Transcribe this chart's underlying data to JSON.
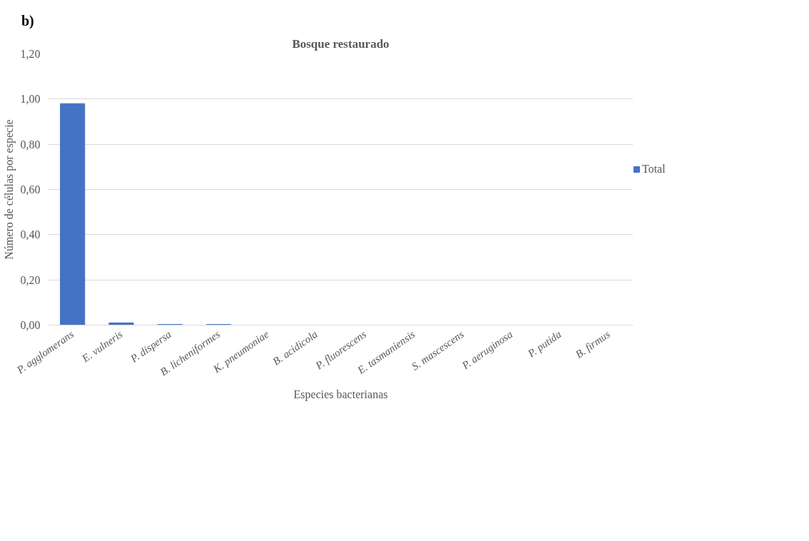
{
  "chart_data": {
    "type": "bar",
    "title": "Bosque restaurado",
    "xlabel": "Especies bacterianas",
    "ylabel": "Número de células por especie",
    "annotations": [
      "b)"
    ],
    "categories": [
      "P. agglomerans",
      "E. vulneris",
      "P. dispersa",
      "B. licheniformes",
      "K. pneumoniae",
      "B. acidicola",
      "P. fluorescens",
      "E. tasmaniensis",
      "S. mascescens",
      "P. aeruginosa",
      "P. putida",
      "B. firmus"
    ],
    "series": [
      {
        "name": "Total",
        "color": "#4472c4",
        "values": [
          0.98,
          0.01,
          0.003,
          0.003,
          0,
          0,
          0,
          0,
          0,
          0,
          0,
          0
        ]
      }
    ],
    "ylim": [
      0,
      1.2
    ],
    "yticks": [
      {
        "value": 0,
        "label": "0,00"
      },
      {
        "value": 0.2,
        "label": "0,20"
      },
      {
        "value": 0.4,
        "label": "0,40"
      },
      {
        "value": 0.6,
        "label": "0,60"
      },
      {
        "value": 0.8,
        "label": "0,80"
      },
      {
        "value": 1.0,
        "label": "1,00"
      },
      {
        "value": 1.2,
        "label": "1,20"
      }
    ],
    "grid": "y",
    "legend": "right"
  }
}
